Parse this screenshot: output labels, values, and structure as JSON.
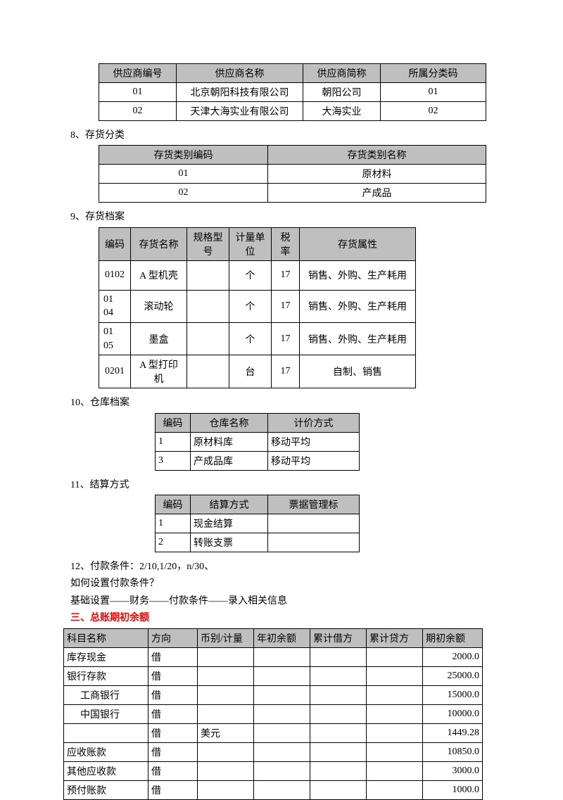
{
  "table1": {
    "headers": [
      "供应商编号",
      "供应商名称",
      "供应商简称",
      "所属分类码"
    ],
    "rows": [
      [
        "01",
        "北京朝阳科技有限公司",
        "朝阳公司",
        "01"
      ],
      [
        "02",
        "天津大海实业有限公司",
        "大海实业",
        "02"
      ]
    ],
    "widths": [
      110,
      180,
      110,
      150
    ]
  },
  "section8": "8、存货分类",
  "table2": {
    "headers": [
      "存货类别编码",
      "存货类别名称"
    ],
    "rows": [
      [
        "01",
        "原材料"
      ],
      [
        "02",
        "产成品"
      ]
    ],
    "widths": [
      240,
      310
    ]
  },
  "section9": "9、存货档案",
  "table3": {
    "headers": [
      "编码",
      "存货名称",
      "规格型号",
      "计量单位",
      "税率",
      "存货属性"
    ],
    "rows": [
      [
        "0102",
        "A 型机壳",
        "",
        "个",
        "17",
        "销售、外购、生产耗用"
      ],
      [
        "01\n04",
        "滚动轮",
        "",
        "个",
        "17",
        "销售、外购、生产耗用"
      ],
      [
        "01\n05",
        "墨盒",
        "",
        "个",
        "17",
        "销售、外购、生产耗用"
      ],
      [
        "0201",
        "A 型打印机",
        "",
        "台",
        "17",
        "自制、销售"
      ]
    ],
    "widths": [
      45,
      80,
      60,
      60,
      40,
      165
    ]
  },
  "section10": "10、仓库档案",
  "table4": {
    "headers": [
      "编码",
      "仓库名称",
      "计价方式"
    ],
    "rows": [
      [
        "1",
        "原材料库",
        "移动平均"
      ],
      [
        "3",
        "产成品库",
        "移动平均"
      ]
    ],
    "widths": [
      50,
      110,
      130
    ]
  },
  "section11": "11、结算方式",
  "table5": {
    "headers": [
      "编码",
      "结算方式",
      "票据管理标"
    ],
    "rows": [
      [
        "1",
        "现金结算",
        ""
      ],
      [
        "2",
        "转账支票",
        ""
      ]
    ],
    "widths": [
      50,
      110,
      130
    ]
  },
  "text12a": "12、付款条件：2/10,1/20，n/30、",
  "text12b": "如何设置付款条件？",
  "text12c": "基础设置——财务——付款条件——录入相关信息",
  "section_red": "三、总账期初余额",
  "table6": {
    "headers": [
      "科目名称",
      "方向",
      "币别/计量",
      "年初余额",
      "累计借方",
      "累计贷方",
      "期初余额"
    ],
    "rows": [
      [
        "库存现金",
        "借",
        "",
        "",
        "",
        "",
        "2000.0"
      ],
      [
        "银行存款",
        "借",
        "",
        "",
        "",
        "",
        "25000.0"
      ],
      [
        "工商银行",
        "借",
        "",
        "",
        "",
        "",
        "15000.0"
      ],
      [
        "中国银行",
        "借",
        "",
        "",
        "",
        "",
        "10000.0"
      ],
      [
        "",
        "借",
        "美元",
        "",
        "",
        "",
        "1449.28"
      ],
      [
        "应收账款",
        "借",
        "",
        "",
        "",
        "",
        "10850.0"
      ],
      [
        "其他应收款",
        "借",
        "",
        "",
        "",
        "",
        "3000.0"
      ],
      [
        "预付账款",
        "借",
        "",
        "",
        "",
        "",
        "1000.0"
      ]
    ],
    "widths": [
      120,
      70,
      80,
      80,
      80,
      80,
      85
    ],
    "indented_rows": [
      2,
      3
    ]
  }
}
